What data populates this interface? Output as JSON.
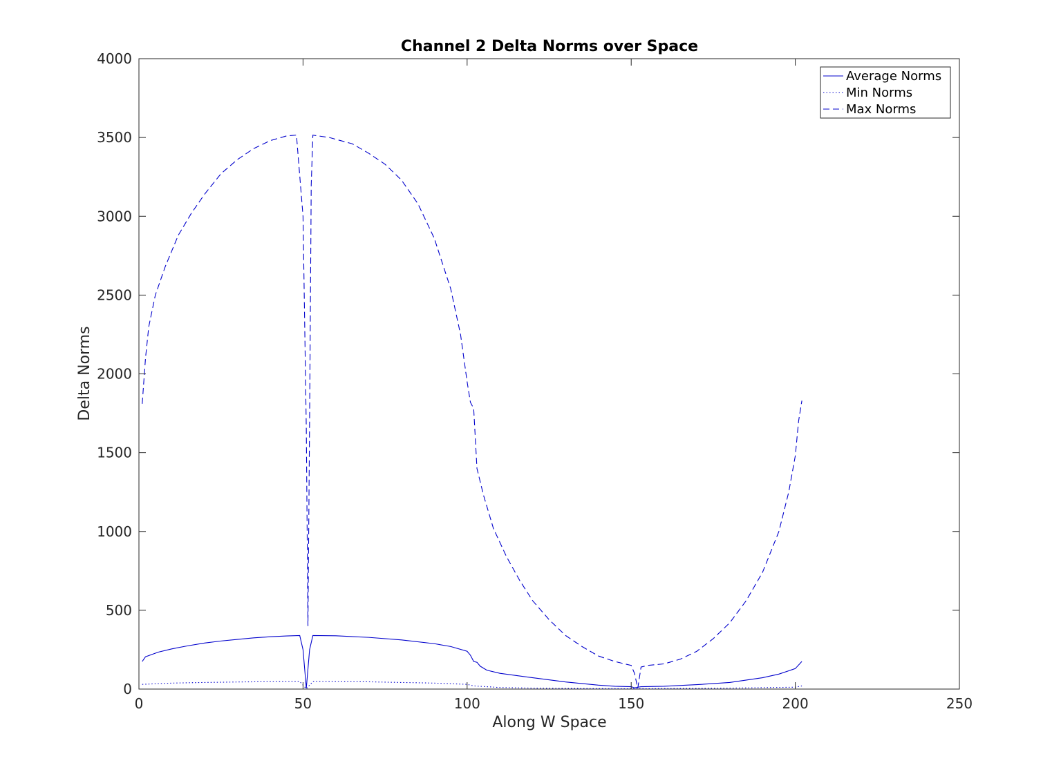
{
  "chart_data": {
    "type": "line",
    "title": "Channel 2 Delta Norms over Space",
    "xlabel": "Along W Space",
    "ylabel": "Delta Norms",
    "xlim": [
      0,
      250
    ],
    "ylim": [
      0,
      4000
    ],
    "xticks": [
      0,
      50,
      100,
      150,
      200,
      250
    ],
    "yticks": [
      0,
      500,
      1000,
      1500,
      2000,
      2500,
      3000,
      3500,
      4000
    ],
    "xtick_labels": [
      "0",
      "50",
      "100",
      "150",
      "200",
      "250"
    ],
    "ytick_labels": [
      "0",
      "500",
      "1000",
      "1500",
      "2000",
      "2500",
      "3000",
      "3500",
      "4000"
    ],
    "grid": false,
    "legend_position": "top-right",
    "line_color": "#0000cc",
    "series": [
      {
        "name": "Average Norms",
        "style": "solid",
        "points": [
          [
            1,
            175
          ],
          [
            2,
            205
          ],
          [
            4,
            220
          ],
          [
            6,
            235
          ],
          [
            10,
            255
          ],
          [
            15,
            275
          ],
          [
            20,
            292
          ],
          [
            25,
            305
          ],
          [
            30,
            315
          ],
          [
            35,
            325
          ],
          [
            40,
            332
          ],
          [
            45,
            337
          ],
          [
            49,
            340
          ],
          [
            50,
            250
          ],
          [
            51,
            5
          ],
          [
            52,
            250
          ],
          [
            53,
            340
          ],
          [
            60,
            338
          ],
          [
            70,
            328
          ],
          [
            80,
            312
          ],
          [
            90,
            288
          ],
          [
            95,
            270
          ],
          [
            100,
            240
          ],
          [
            101,
            215
          ],
          [
            102,
            175
          ],
          [
            103,
            170
          ],
          [
            104,
            145
          ],
          [
            106,
            120
          ],
          [
            110,
            100
          ],
          [
            120,
            72
          ],
          [
            130,
            45
          ],
          [
            140,
            25
          ],
          [
            145,
            18
          ],
          [
            150,
            15
          ],
          [
            151,
            8
          ],
          [
            152,
            12
          ],
          [
            153,
            15
          ],
          [
            160,
            18
          ],
          [
            170,
            28
          ],
          [
            180,
            42
          ],
          [
            190,
            72
          ],
          [
            195,
            95
          ],
          [
            200,
            130
          ],
          [
            202,
            175
          ]
        ]
      },
      {
        "name": "Min Norms",
        "style": "dotted",
        "points": [
          [
            1,
            30
          ],
          [
            10,
            38
          ],
          [
            20,
            42
          ],
          [
            30,
            45
          ],
          [
            40,
            47
          ],
          [
            49,
            48
          ],
          [
            51,
            2
          ],
          [
            53,
            48
          ],
          [
            70,
            46
          ],
          [
            90,
            38
          ],
          [
            100,
            30
          ],
          [
            102,
            20
          ],
          [
            110,
            10
          ],
          [
            120,
            6
          ],
          [
            140,
            3
          ],
          [
            150,
            2
          ],
          [
            160,
            3
          ],
          [
            180,
            6
          ],
          [
            200,
            12
          ],
          [
            202,
            20
          ]
        ]
      },
      {
        "name": "Max Norms",
        "style": "dashed",
        "points": [
          [
            1,
            1810
          ],
          [
            2,
            2100
          ],
          [
            3,
            2300
          ],
          [
            5,
            2500
          ],
          [
            8,
            2680
          ],
          [
            12,
            2880
          ],
          [
            16,
            3020
          ],
          [
            20,
            3140
          ],
          [
            25,
            3270
          ],
          [
            30,
            3360
          ],
          [
            35,
            3430
          ],
          [
            40,
            3480
          ],
          [
            45,
            3510
          ],
          [
            48,
            3515
          ],
          [
            50,
            3000
          ],
          [
            51,
            1650
          ],
          [
            51.5,
            400
          ],
          [
            52,
            1700
          ],
          [
            52.5,
            3200
          ],
          [
            53,
            3515
          ],
          [
            58,
            3500
          ],
          [
            65,
            3460
          ],
          [
            70,
            3400
          ],
          [
            75,
            3330
          ],
          [
            80,
            3230
          ],
          [
            85,
            3080
          ],
          [
            90,
            2860
          ],
          [
            95,
            2540
          ],
          [
            98,
            2250
          ],
          [
            100,
            1950
          ],
          [
            101,
            1820
          ],
          [
            102,
            1780
          ],
          [
            103,
            1400
          ],
          [
            105,
            1230
          ],
          [
            108,
            1020
          ],
          [
            112,
            840
          ],
          [
            116,
            690
          ],
          [
            120,
            560
          ],
          [
            125,
            440
          ],
          [
            130,
            340
          ],
          [
            135,
            270
          ],
          [
            140,
            210
          ],
          [
            145,
            175
          ],
          [
            150,
            150
          ],
          [
            151,
            100
          ],
          [
            152,
            5
          ],
          [
            153,
            140
          ],
          [
            155,
            150
          ],
          [
            160,
            160
          ],
          [
            165,
            190
          ],
          [
            170,
            240
          ],
          [
            175,
            320
          ],
          [
            180,
            420
          ],
          [
            185,
            560
          ],
          [
            190,
            740
          ],
          [
            195,
            1000
          ],
          [
            198,
            1250
          ],
          [
            200,
            1480
          ],
          [
            201,
            1700
          ],
          [
            202,
            1830
          ]
        ]
      }
    ]
  }
}
